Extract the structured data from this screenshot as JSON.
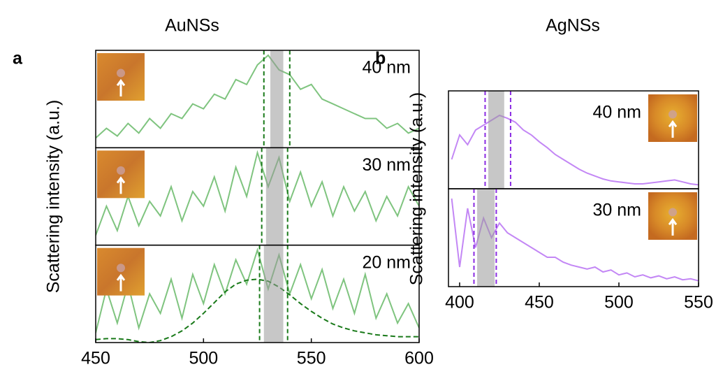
{
  "chart_data": [
    {
      "type": "line",
      "title": "AuNSs",
      "panel_label": "a",
      "ylabel": "Scattering intensity (a.u.)",
      "xlim": [
        450,
        600
      ],
      "xticks": [
        450,
        500,
        550,
        600
      ],
      "ylim": [
        0,
        1
      ],
      "x": [
        450,
        455,
        460,
        465,
        470,
        475,
        480,
        485,
        490,
        495,
        500,
        505,
        510,
        515,
        520,
        525,
        530,
        535,
        540,
        545,
        550,
        555,
        560,
        565,
        570,
        575,
        580,
        585,
        590,
        595,
        600
      ],
      "series": [
        {
          "name": "40 nm",
          "color": "#7fc47f",
          "band": [
            531,
            537
          ],
          "dashed": [
            528,
            540
          ],
          "dashed_color": "#1a7a1a",
          "values": [
            0.1,
            0.2,
            0.12,
            0.25,
            0.15,
            0.3,
            0.2,
            0.35,
            0.3,
            0.45,
            0.4,
            0.55,
            0.5,
            0.7,
            0.65,
            0.85,
            0.95,
            0.8,
            0.75,
            0.6,
            0.65,
            0.5,
            0.45,
            0.4,
            0.35,
            0.3,
            0.3,
            0.2,
            0.25,
            0.15,
            0.2
          ]
        },
        {
          "name": "30 nm",
          "color": "#7fc47f",
          "band": [
            529,
            537
          ],
          "dashed": [
            527,
            539
          ],
          "dashed_color": "#1a7a1a",
          "values": [
            0.1,
            0.4,
            0.15,
            0.5,
            0.2,
            0.45,
            0.3,
            0.6,
            0.25,
            0.55,
            0.4,
            0.7,
            0.35,
            0.8,
            0.5,
            0.95,
            0.6,
            0.9,
            0.45,
            0.75,
            0.4,
            0.65,
            0.3,
            0.6,
            0.35,
            0.55,
            0.25,
            0.5,
            0.3,
            0.6,
            0.4
          ]
        },
        {
          "name": "20 nm",
          "color": "#7fc47f",
          "band": [
            528,
            537
          ],
          "dashed": [
            526,
            539
          ],
          "dashed_color": "#1a7a1a",
          "values": [
            0.1,
            0.55,
            0.2,
            0.6,
            0.15,
            0.5,
            0.3,
            0.65,
            0.25,
            0.7,
            0.4,
            0.8,
            0.5,
            0.85,
            0.6,
            0.95,
            0.55,
            0.9,
            0.5,
            0.8,
            0.45,
            0.75,
            0.35,
            0.65,
            0.3,
            0.7,
            0.25,
            0.5,
            0.2,
            0.4,
            0.15
          ],
          "fit_values": [
            0.03,
            0.04,
            0.04,
            0.03,
            0.01,
            0,
            0.02,
            0.06,
            0.12,
            0.2,
            0.3,
            0.41,
            0.52,
            0.6,
            0.64,
            0.65,
            0.63,
            0.57,
            0.49,
            0.4,
            0.32,
            0.25,
            0.19,
            0.15,
            0.12,
            0.1,
            0.08,
            0.07,
            0.06,
            0.06,
            0.06
          ]
        }
      ]
    },
    {
      "type": "line",
      "title": "AgNSs",
      "panel_label": "b",
      "ylabel": "Scattering intensity (a.u.)",
      "xlim": [
        393,
        550
      ],
      "xticks": [
        400,
        450,
        500,
        550
      ],
      "ylim": [
        0,
        1
      ],
      "x": [
        395,
        400,
        405,
        410,
        415,
        420,
        425,
        430,
        435,
        440,
        445,
        450,
        455,
        460,
        465,
        470,
        475,
        480,
        485,
        490,
        495,
        500,
        505,
        510,
        515,
        520,
        525,
        530,
        535,
        540,
        545,
        550
      ],
      "series": [
        {
          "name": "40 nm",
          "color": "#c387f5",
          "band": [
            418,
            428
          ],
          "dashed": [
            416,
            432
          ],
          "dashed_color": "#8a2be2",
          "values": [
            0.3,
            0.55,
            0.45,
            0.6,
            0.65,
            0.7,
            0.75,
            0.72,
            0.68,
            0.6,
            0.55,
            0.48,
            0.42,
            0.35,
            0.3,
            0.25,
            0.2,
            0.16,
            0.13,
            0.1,
            0.08,
            0.07,
            0.06,
            0.05,
            0.05,
            0.06,
            0.07,
            0.08,
            0.09,
            0.07,
            0.05,
            0.04
          ]
        },
        {
          "name": "30 nm",
          "color": "#c387f5",
          "band": [
            411,
            422
          ],
          "dashed": [
            409,
            423
          ],
          "dashed_color": "#8a2be2",
          "values": [
            0.9,
            0.2,
            0.8,
            0.4,
            0.7,
            0.5,
            0.65,
            0.55,
            0.5,
            0.45,
            0.4,
            0.35,
            0.3,
            0.3,
            0.25,
            0.22,
            0.2,
            0.18,
            0.2,
            0.15,
            0.17,
            0.12,
            0.14,
            0.1,
            0.12,
            0.09,
            0.11,
            0.08,
            0.1,
            0.07,
            0.08,
            0.06
          ]
        }
      ]
    }
  ]
}
